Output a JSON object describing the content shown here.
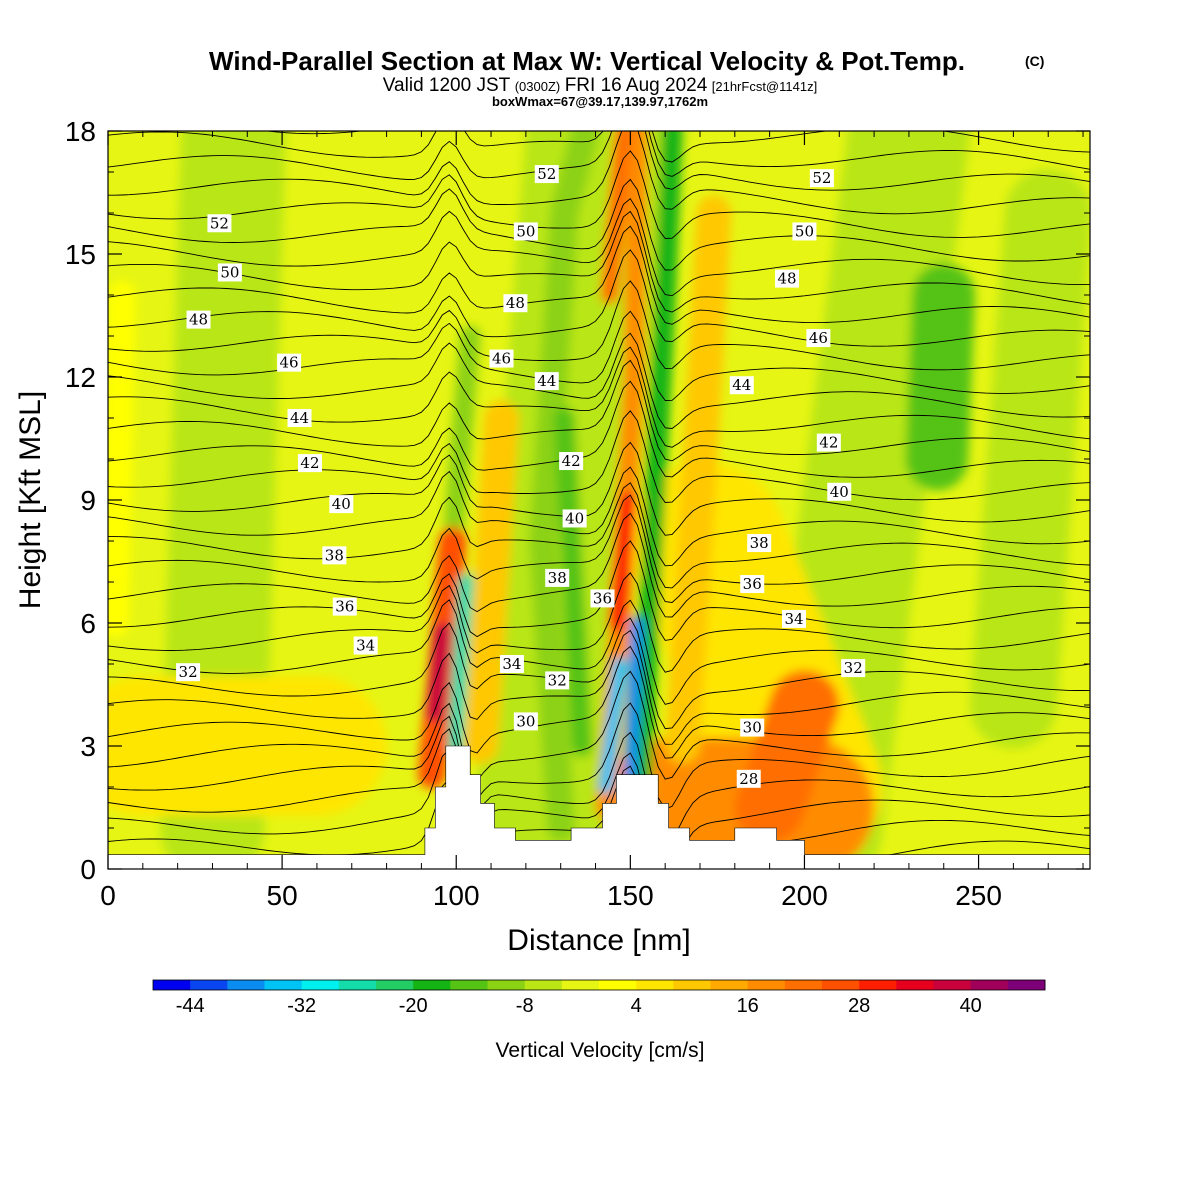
{
  "chart_data": {
    "type": "heatmap",
    "title": "Wind-Parallel Section at Max W: Vertical Velocity & Pot.Temp.",
    "title_mark": "(C)",
    "subtitle_parts": [
      "Valid 1200 JST",
      "(0300Z)",
      "FRI 16 Aug 2024",
      "[21hrFcst@1141z]"
    ],
    "box_info": "boxWmax=67@39.17,139.97,1762m",
    "xlabel": "Distance [nm]",
    "ylabel": "Height [Kft MSL]",
    "xlim": [
      0,
      282
    ],
    "ylim": [
      0,
      18
    ],
    "xticks": [
      0,
      50,
      100,
      150,
      200,
      250
    ],
    "yticks": [
      0,
      3,
      6,
      9,
      12,
      15,
      18
    ],
    "colorbar": {
      "label": "Vertical Velocity [cm/s]",
      "tick_labels": [
        "-44",
        "-32",
        "-20",
        "-8",
        "4",
        "16",
        "28",
        "40"
      ],
      "levels": [
        -48,
        -44,
        -40,
        -36,
        -32,
        -28,
        -24,
        -20,
        -16,
        -12,
        -8,
        -4,
        0,
        4,
        8,
        12,
        16,
        20,
        24,
        28,
        32,
        36,
        40,
        44,
        48
      ],
      "colors": [
        "#0000f0",
        "#0a46f0",
        "#0a8cf0",
        "#00c3f5",
        "#00f0f0",
        "#14dcaa",
        "#22cd64",
        "#14b414",
        "#55c314",
        "#8cd214",
        "#b9e614",
        "#e6f514",
        "#ffff00",
        "#ffe600",
        "#ffc800",
        "#ffaa00",
        "#ff8c00",
        "#ff6e00",
        "#ff5000",
        "#ff1e00",
        "#e6001e",
        "#c8003c",
        "#a0005a",
        "#7d0078"
      ]
    },
    "terrain": [
      [
        0,
        0.35
      ],
      [
        91,
        0.35
      ],
      [
        91,
        1.0
      ],
      [
        94,
        1.0
      ],
      [
        94,
        2.0
      ],
      [
        97,
        2.0
      ],
      [
        97,
        3.0
      ],
      [
        104,
        3.0
      ],
      [
        104,
        2.3
      ],
      [
        107,
        2.3
      ],
      [
        107,
        1.6
      ],
      [
        111,
        1.6
      ],
      [
        111,
        1.0
      ],
      [
        117,
        1.0
      ],
      [
        117,
        0.7
      ],
      [
        133,
        0.7
      ],
      [
        133,
        1.0
      ],
      [
        142,
        1.0
      ],
      [
        142,
        1.6
      ],
      [
        146,
        1.6
      ],
      [
        146,
        2.3
      ],
      [
        158,
        2.3
      ],
      [
        158,
        1.6
      ],
      [
        161,
        1.6
      ],
      [
        161,
        1.0
      ],
      [
        167,
        1.0
      ],
      [
        167,
        0.7
      ],
      [
        180,
        0.7
      ],
      [
        180,
        1.0
      ],
      [
        192,
        1.0
      ],
      [
        192,
        0.7
      ],
      [
        200,
        0.7
      ],
      [
        200,
        0.35
      ],
      [
        282,
        0.35
      ]
    ],
    "theta_labels": [
      {
        "text": "52",
        "x": 32,
        "y": 15.75
      },
      {
        "text": "50",
        "x": 35,
        "y": 14.55
      },
      {
        "text": "48",
        "x": 26,
        "y": 13.4
      },
      {
        "text": "46",
        "x": 52,
        "y": 12.35
      },
      {
        "text": "44",
        "x": 55,
        "y": 11.0
      },
      {
        "text": "42",
        "x": 58,
        "y": 9.9
      },
      {
        "text": "40",
        "x": 67,
        "y": 8.9
      },
      {
        "text": "38",
        "x": 65,
        "y": 7.65
      },
      {
        "text": "36",
        "x": 68,
        "y": 6.4
      },
      {
        "text": "34",
        "x": 74,
        "y": 5.45
      },
      {
        "text": "32",
        "x": 23,
        "y": 4.8
      },
      {
        "text": "52",
        "x": 126,
        "y": 16.95
      },
      {
        "text": "50",
        "x": 120,
        "y": 15.55
      },
      {
        "text": "48",
        "x": 117,
        "y": 13.8
      },
      {
        "text": "46",
        "x": 113,
        "y": 12.45
      },
      {
        "text": "44",
        "x": 126,
        "y": 11.9
      },
      {
        "text": "42",
        "x": 133,
        "y": 9.95
      },
      {
        "text": "40",
        "x": 134,
        "y": 8.55
      },
      {
        "text": "38",
        "x": 129,
        "y": 7.1
      },
      {
        "text": "36",
        "x": 142,
        "y": 6.6
      },
      {
        "text": "34",
        "x": 116,
        "y": 5.0
      },
      {
        "text": "32",
        "x": 129,
        "y": 4.6
      },
      {
        "text": "30",
        "x": 120,
        "y": 3.6
      },
      {
        "text": "52",
        "x": 205,
        "y": 16.85
      },
      {
        "text": "50",
        "x": 200,
        "y": 15.55
      },
      {
        "text": "48",
        "x": 195,
        "y": 14.4
      },
      {
        "text": "46",
        "x": 204,
        "y": 12.95
      },
      {
        "text": "44",
        "x": 182,
        "y": 11.8
      },
      {
        "text": "42",
        "x": 207,
        "y": 10.4
      },
      {
        "text": "40",
        "x": 210,
        "y": 9.2
      },
      {
        "text": "38",
        "x": 187,
        "y": 7.95
      },
      {
        "text": "36",
        "x": 185,
        "y": 6.95
      },
      {
        "text": "34",
        "x": 197,
        "y": 6.1
      },
      {
        "text": "32",
        "x": 214,
        "y": 4.9
      },
      {
        "text": "30",
        "x": 185,
        "y": 3.45
      },
      {
        "text": "28",
        "x": 184,
        "y": 2.2
      }
    ]
  }
}
